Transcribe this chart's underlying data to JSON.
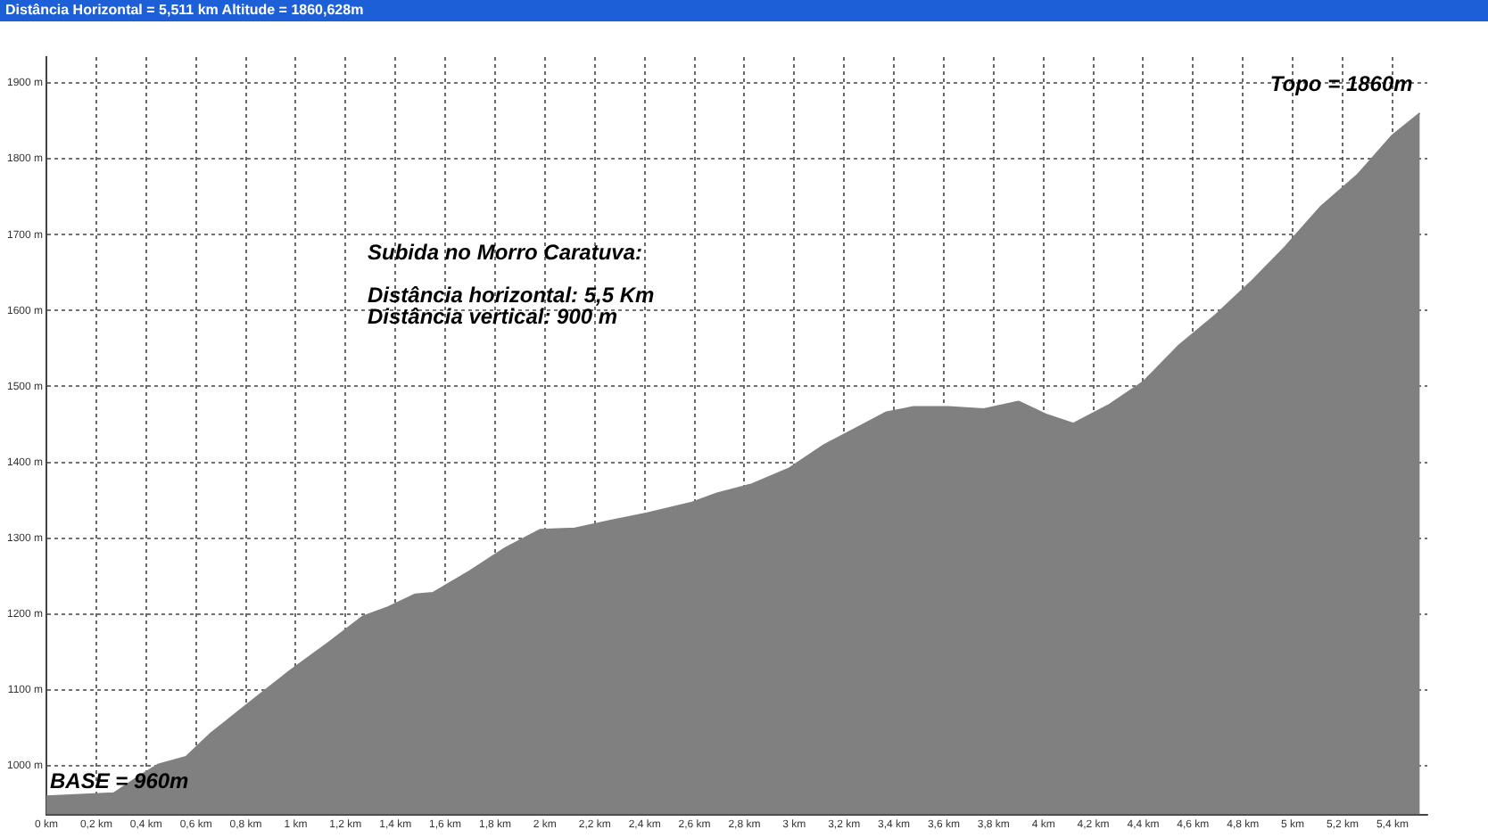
{
  "chart_data": {
    "type": "area",
    "title": "Distância Horizontal = 5,511 km   Altitude = 1860,628m",
    "x": [
      0,
      0.27,
      0.38,
      0.45,
      0.56,
      0.66,
      0.84,
      0.98,
      1.13,
      1.27,
      1.37,
      1.48,
      1.55,
      1.7,
      1.84,
      1.98,
      2.12,
      2.26,
      2.41,
      2.59,
      2.69,
      2.83,
      2.98,
      3.12,
      3.26,
      3.37,
      3.48,
      3.62,
      3.76,
      3.9,
      4.01,
      4.12,
      4.26,
      4.4,
      4.54,
      4.69,
      4.83,
      4.97,
      5.11,
      5.26,
      5.4,
      5.51
    ],
    "series": [
      {
        "color": "#808080",
        "values": [
          960,
          964,
          988,
          1002,
          1012,
          1043,
          1090,
          1126,
          1162,
          1197,
          1209,
          1226,
          1228,
          1257,
          1287,
          1311,
          1313,
          1323,
          1333,
          1347,
          1359,
          1371,
          1392,
          1423,
          1447,
          1466,
          1473,
          1473,
          1470,
          1480,
          1463,
          1451,
          1475,
          1506,
          1553,
          1594,
          1637,
          1684,
          1736,
          1779,
          1831,
          1860
        ]
      }
    ],
    "xlim": [
      0,
      5.54
    ],
    "ylim": [
      936,
      1934
    ],
    "xticks": [
      {
        "value": 0,
        "label": "0 km"
      },
      {
        "value": 0.2,
        "label": "0,2 km"
      },
      {
        "value": 0.4,
        "label": "0,4 km"
      },
      {
        "value": 0.6,
        "label": "0,6 km"
      },
      {
        "value": 0.8,
        "label": "0,8 km"
      },
      {
        "value": 1,
        "label": "1 km"
      },
      {
        "value": 1.2,
        "label": "1,2 km"
      },
      {
        "value": 1.4,
        "label": "1,4 km"
      },
      {
        "value": 1.6,
        "label": "1,6 km"
      },
      {
        "value": 1.8,
        "label": "1,8 km"
      },
      {
        "value": 2,
        "label": "2 km"
      },
      {
        "value": 2.2,
        "label": "2,2 km"
      },
      {
        "value": 2.4,
        "label": "2,4 km"
      },
      {
        "value": 2.6,
        "label": "2,6 km"
      },
      {
        "value": 2.8,
        "label": "2,8 km"
      },
      {
        "value": 3,
        "label": "3 km"
      },
      {
        "value": 3.2,
        "label": "3,2 km"
      },
      {
        "value": 3.4,
        "label": "3,4 km"
      },
      {
        "value": 3.6,
        "label": "3,6 km"
      },
      {
        "value": 3.8,
        "label": "3,8 km"
      },
      {
        "value": 4,
        "label": "4 km"
      },
      {
        "value": 4.2,
        "label": "4,2 km"
      },
      {
        "value": 4.4,
        "label": "4,4 km"
      },
      {
        "value": 4.6,
        "label": "4,6 km"
      },
      {
        "value": 4.8,
        "label": "4,8 km"
      },
      {
        "value": 5,
        "label": "5 km"
      },
      {
        "value": 5.2,
        "label": "5,2 km"
      },
      {
        "value": 5.4,
        "label": "5,4 km"
      }
    ],
    "yticks": [
      {
        "value": 1000,
        "label": "1000 m"
      },
      {
        "value": 1100,
        "label": "1100 m"
      },
      {
        "value": 1200,
        "label": "1200 m"
      },
      {
        "value": 1300,
        "label": "1300 m"
      },
      {
        "value": 1400,
        "label": "1400 m"
      },
      {
        "value": 1500,
        "label": "1500 m"
      },
      {
        "value": 1600,
        "label": "1600 m"
      },
      {
        "value": 1700,
        "label": "1700 m"
      },
      {
        "value": 1800,
        "label": "1800 m"
      },
      {
        "value": 1900,
        "label": "1900 m"
      }
    ],
    "grid": true,
    "line_style": "dotted",
    "legend": false,
    "annotations": [
      {
        "text": "BASE = 960m",
        "x": 0,
        "y": 960
      },
      {
        "text": "Topo = 1860m",
        "x": 5.51,
        "y": 1860
      },
      "Subida no Morro Caratuva:",
      "Distância horizontal: 5,5 Km",
      "Distância vertical: 900 m"
    ]
  }
}
